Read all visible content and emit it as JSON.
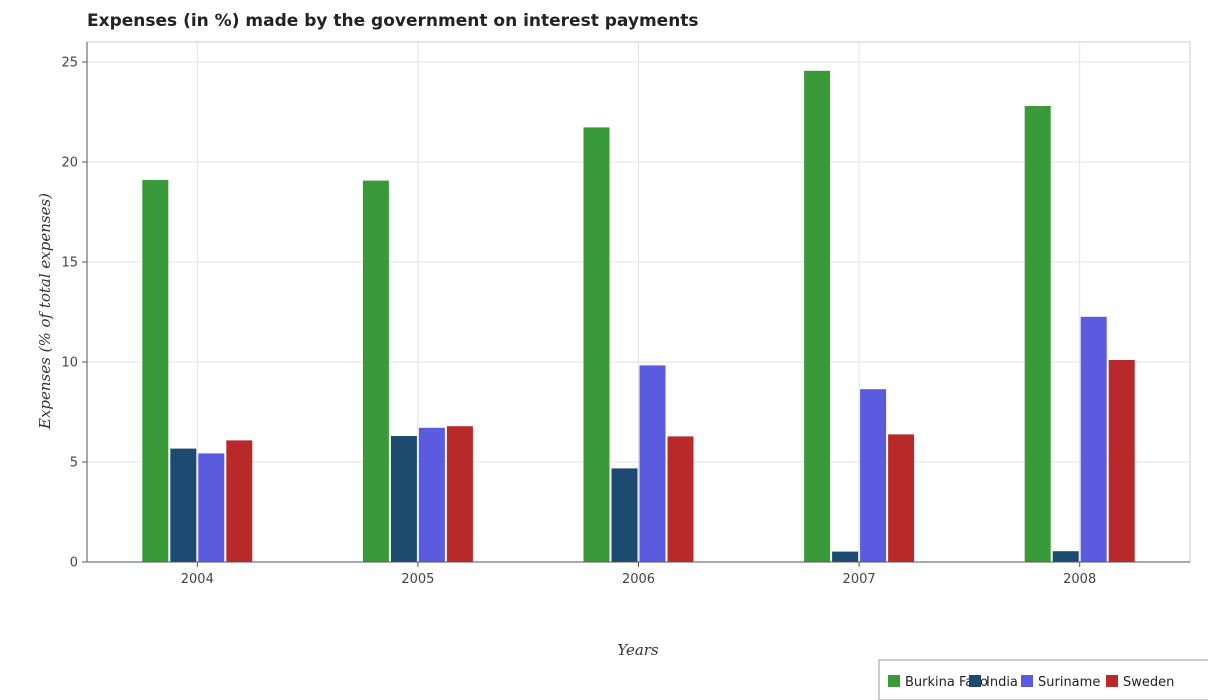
{
  "chart_data": {
    "type": "bar",
    "title": "Expenses (in %) made by the government on interest payments",
    "xlabel": "Years",
    "ylabel": "Expenses (% of total expenses)",
    "categories": [
      "2004",
      "2005",
      "2006",
      "2007",
      "2008"
    ],
    "ylim": [
      0,
      26
    ],
    "yticks": [
      0,
      5,
      10,
      15,
      20,
      25
    ],
    "grid": true,
    "legend_position": "bottom-right",
    "series": [
      {
        "name": "Burkina Faso",
        "color": "#3a9a3a",
        "values": [
          19.1,
          19.07,
          21.73,
          24.56,
          22.8
        ]
      },
      {
        "name": "India",
        "color": "#1d4a70",
        "values": [
          5.67,
          6.3,
          4.68,
          0.52,
          0.54
        ]
      },
      {
        "name": "Suriname",
        "color": "#5b5bdf",
        "values": [
          5.43,
          6.71,
          9.83,
          8.64,
          12.26
        ]
      },
      {
        "name": "Sweden",
        "color": "#b82a2a",
        "values": [
          6.08,
          6.79,
          6.28,
          6.38,
          10.1
        ]
      }
    ]
  }
}
